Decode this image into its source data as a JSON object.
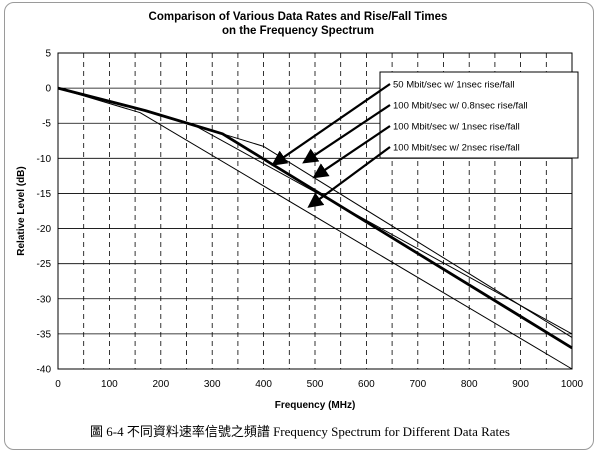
{
  "figure": {
    "caption": "圖 6-4  不同資料速率信號之頻譜  Frequency Spectrum for Different Data Rates"
  },
  "chart_data": {
    "type": "line",
    "title_lines": [
      "Comparison of Various Data Rates and Rise/Fall Times",
      "on the Frequency Spectrum"
    ],
    "xlabel": "Frequency (MHz)",
    "ylabel": "Relative Level (dB)",
    "xlim": [
      0,
      1000
    ],
    "ylim": [
      -40,
      5
    ],
    "x_ticks": [
      0,
      100,
      200,
      300,
      400,
      500,
      600,
      700,
      800,
      900,
      1000
    ],
    "y_ticks": [
      5,
      0,
      -5,
      -10,
      -15,
      -20,
      -25,
      -30,
      -35,
      -40
    ],
    "grid": {
      "vertical": "dashed",
      "horizontal": "solid"
    },
    "legend_position": "top-right",
    "series": [
      {
        "name": "50 Mbit/sec w/ 1nsec rise/fall",
        "x": [
          0,
          170,
          270,
          1000
        ],
        "y": [
          0,
          -3.2,
          -5.5,
          -35
        ],
        "stroke_width": 1
      },
      {
        "name": "100 Mbit/sec w/ 0.8nsec rise/fall",
        "x": [
          0,
          170,
          320,
          400,
          1000
        ],
        "y": [
          0,
          -3.2,
          -6.5,
          -8.3,
          -35.5
        ],
        "stroke_width": 1
      },
      {
        "name": "100 Mbit/sec w/ 1nsec rise/fall",
        "x": [
          0,
          170,
          320,
          1000
        ],
        "y": [
          0,
          -3.2,
          -6.5,
          -37
        ],
        "stroke_width": 2.8
      },
      {
        "name": "100 Mbit/sec w/ 2nsec rise/fall",
        "x": [
          0,
          160,
          1000
        ],
        "y": [
          0,
          -3.5,
          -40
        ],
        "stroke_width": 1
      }
    ]
  }
}
